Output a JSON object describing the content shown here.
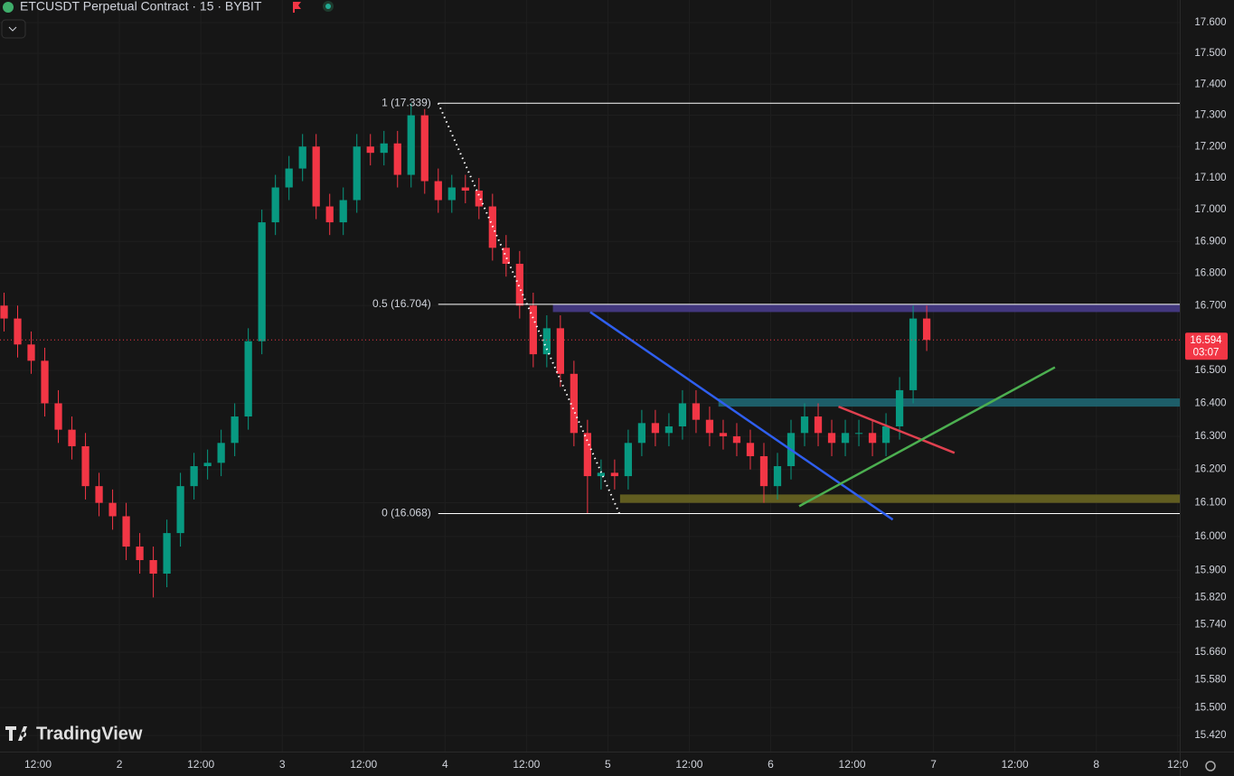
{
  "header": {
    "title": "ETCUSDT Perpetual Contract · 15 · BYBIT",
    "logo": "TradingView"
  },
  "chart_data": {
    "type": "candlestick",
    "log_scale": true,
    "grid": true,
    "up_color": "#089981",
    "down_color": "#f23645",
    "x": [
      7,
      9,
      11,
      13,
      15,
      17,
      19,
      21,
      23,
      25,
      27,
      29,
      31,
      33,
      35,
      37,
      39,
      41,
      43,
      45,
      47,
      49,
      51,
      53,
      55,
      57,
      59,
      61,
      63,
      65,
      67,
      69,
      71,
      73,
      75,
      77,
      79,
      81,
      83,
      85,
      87,
      89,
      91,
      93,
      95,
      97,
      99,
      101,
      103,
      105,
      107,
      109,
      111,
      113,
      115,
      117,
      119,
      121,
      123,
      125,
      127,
      129,
      131,
      133,
      135,
      137,
      139,
      141,
      143
    ],
    "open": [
      16.7,
      16.66,
      16.58,
      16.53,
      16.4,
      16.32,
      16.27,
      16.15,
      16.1,
      16.06,
      15.97,
      15.93,
      15.89,
      16.01,
      16.15,
      16.21,
      16.22,
      16.28,
      16.36,
      16.59,
      16.96,
      17.07,
      17.13,
      17.2,
      17.01,
      16.96,
      17.03,
      17.2,
      17.18,
      17.21,
      17.11,
      17.3,
      17.09,
      17.03,
      17.07,
      17.06,
      17.01,
      16.88,
      16.83,
      16.7,
      16.55,
      16.63,
      16.49,
      16.31,
      16.18,
      16.19,
      16.18,
      16.28,
      16.34,
      16.31,
      16.33,
      16.4,
      16.35,
      16.31,
      16.3,
      16.28,
      16.24,
      16.15,
      16.21,
      16.31,
      16.36,
      16.31,
      16.28,
      16.31,
      16.31,
      16.28,
      16.33,
      16.44,
      16.66
    ],
    "high": [
      16.74,
      16.7,
      16.62,
      16.57,
      16.44,
      16.36,
      16.31,
      16.19,
      16.14,
      16.1,
      16.01,
      15.97,
      16.05,
      16.19,
      16.25,
      16.26,
      16.32,
      16.4,
      16.63,
      17.0,
      17.11,
      17.17,
      17.24,
      17.24,
      17.05,
      17.07,
      17.24,
      17.24,
      17.25,
      17.25,
      17.339,
      17.32,
      17.13,
      17.11,
      17.11,
      17.1,
      17.05,
      16.92,
      16.87,
      16.74,
      16.67,
      16.67,
      16.53,
      16.35,
      16.23,
      16.23,
      16.32,
      16.38,
      16.38,
      16.37,
      16.44,
      16.44,
      16.39,
      16.35,
      16.34,
      16.32,
      16.28,
      16.25,
      16.35,
      16.4,
      16.4,
      16.35,
      16.35,
      16.35,
      16.35,
      16.37,
      16.48,
      16.7,
      16.7
    ],
    "low": [
      16.62,
      16.54,
      16.49,
      16.36,
      16.28,
      16.23,
      16.11,
      16.06,
      16.02,
      15.93,
      15.89,
      15.82,
      15.85,
      15.97,
      16.11,
      16.17,
      16.18,
      16.24,
      16.32,
      16.55,
      16.92,
      17.03,
      17.09,
      16.97,
      16.92,
      16.92,
      16.99,
      17.14,
      17.14,
      17.07,
      17.07,
      17.05,
      16.99,
      16.99,
      17.02,
      16.97,
      16.84,
      16.79,
      16.66,
      16.51,
      16.51,
      16.45,
      16.27,
      16.068,
      16.14,
      16.14,
      16.14,
      16.24,
      16.27,
      16.27,
      16.29,
      16.31,
      16.27,
      16.26,
      16.24,
      16.2,
      16.1,
      16.11,
      16.17,
      16.27,
      16.27,
      16.24,
      16.24,
      16.27,
      16.24,
      16.24,
      16.29,
      16.4,
      16.56
    ],
    "close": [
      16.66,
      16.58,
      16.53,
      16.4,
      16.32,
      16.27,
      16.15,
      16.1,
      16.06,
      15.97,
      15.93,
      15.89,
      16.01,
      16.15,
      16.21,
      16.22,
      16.28,
      16.36,
      16.59,
      16.96,
      17.07,
      17.13,
      17.2,
      17.01,
      16.96,
      17.03,
      17.2,
      17.18,
      17.21,
      17.11,
      17.3,
      17.09,
      17.03,
      17.07,
      17.06,
      17.01,
      16.88,
      16.83,
      16.7,
      16.55,
      16.63,
      16.49,
      16.31,
      16.18,
      16.19,
      16.18,
      16.28,
      16.34,
      16.31,
      16.33,
      16.4,
      16.35,
      16.31,
      16.3,
      16.28,
      16.24,
      16.15,
      16.21,
      16.31,
      16.36,
      16.31,
      16.28,
      16.31,
      16.31,
      16.28,
      16.33,
      16.44,
      16.66,
      16.594
    ],
    "countdown": "03:07",
    "xlim": [
      6.4,
      180.3
    ],
    "xticks": [
      {
        "value": 12,
        "label": "12:00"
      },
      {
        "value": 24,
        "label": "2"
      },
      {
        "value": 36,
        "label": "12:00"
      },
      {
        "value": 48,
        "label": "3"
      },
      {
        "value": 60,
        "label": "12:00"
      },
      {
        "value": 72,
        "label": "4"
      },
      {
        "value": 84,
        "label": "12:00"
      },
      {
        "value": 96,
        "label": "5"
      },
      {
        "value": 108,
        "label": "12:00"
      },
      {
        "value": 120,
        "label": "6"
      },
      {
        "value": 132,
        "label": "12:00"
      },
      {
        "value": 144,
        "label": "7"
      },
      {
        "value": 156,
        "label": "12:00"
      },
      {
        "value": 168,
        "label": "8"
      },
      {
        "value": 180,
        "label": "12:0"
      }
    ],
    "ylim": [
      15.374,
      17.674
    ],
    "yticks": [
      {
        "value": 17.6,
        "label": "17.600"
      },
      {
        "value": 17.5,
        "label": "17.500"
      },
      {
        "value": 17.4,
        "label": "17.400"
      },
      {
        "value": 17.3,
        "label": "17.300"
      },
      {
        "value": 17.2,
        "label": "17.200"
      },
      {
        "value": 17.1,
        "label": "17.100"
      },
      {
        "value": 17.0,
        "label": "17.000"
      },
      {
        "value": 16.9,
        "label": "16.900"
      },
      {
        "value": 16.8,
        "label": "16.800"
      },
      {
        "value": 16.7,
        "label": "16.700"
      },
      {
        "value": 16.5,
        "label": "16.500"
      },
      {
        "value": 16.4,
        "label": "16.400"
      },
      {
        "value": 16.3,
        "label": "16.300"
      },
      {
        "value": 16.2,
        "label": "16.200"
      },
      {
        "value": 16.1,
        "label": "16.100"
      },
      {
        "value": 16.0,
        "label": "16.000"
      },
      {
        "value": 15.9,
        "label": "15.900"
      },
      {
        "value": 15.82,
        "label": "15.820"
      },
      {
        "value": 15.74,
        "label": "15.740"
      },
      {
        "value": 15.66,
        "label": "15.660"
      },
      {
        "value": 15.58,
        "label": "15.580"
      },
      {
        "value": 15.5,
        "label": "15.500"
      },
      {
        "value": 15.42,
        "label": "15.420"
      }
    ],
    "fib": {
      "x": 71.0,
      "end": [
        97.7,
        16.068
      ],
      "color": "#ffffff",
      "levels": [
        {
          "value": 17.339,
          "label": "1 (17.339)"
        },
        {
          "value": 16.704,
          "label": "0.5 (16.704)"
        },
        {
          "value": 16.068,
          "label": "0 (16.068)"
        }
      ]
    },
    "zones": [
      {
        "x": 87.9,
        "range": [
          16.68,
          16.705
        ],
        "color": "#4a3d8f"
      },
      {
        "x": 112.3,
        "range": [
          16.39,
          16.415
        ],
        "color": "#1f6b78"
      },
      {
        "x": 97.8,
        "range": [
          16.1,
          16.125
        ],
        "color": "#6e6a22"
      }
    ],
    "trendlines": [
      {
        "color": "#2f5ff0",
        "points": [
          [
            93.4,
            16.68
          ],
          [
            138.0,
            16.05
          ]
        ]
      },
      {
        "color": "#e0404f",
        "points": [
          [
            130.0,
            16.39
          ],
          [
            147.1,
            16.25
          ]
        ]
      },
      {
        "color": "#4caf50",
        "points": [
          [
            124.2,
            16.09
          ],
          [
            161.9,
            16.51
          ]
        ]
      }
    ]
  }
}
